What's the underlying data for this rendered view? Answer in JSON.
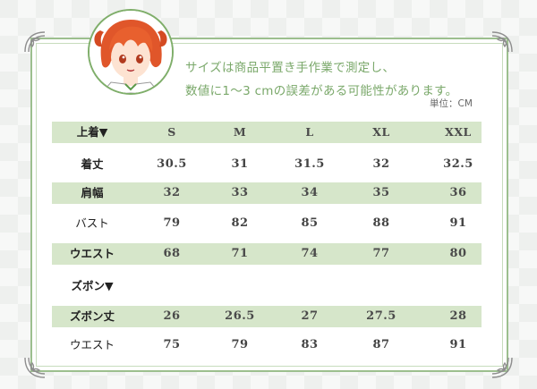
{
  "note": {
    "line1": "サイズは商品平置き手作業で測定し、",
    "line2": "数値に1～3 cmの誤差がある可能性があります。",
    "unit": "単位：CM"
  },
  "table": {
    "header": {
      "label": "上着▼",
      "sizes": [
        "S",
        "M",
        "L",
        "XL",
        "XXL"
      ]
    },
    "rows": [
      {
        "label": "着丈",
        "values": [
          "30.5",
          "31",
          "31.5",
          "32",
          "32.5"
        ]
      },
      {
        "label": "肩幅",
        "values": [
          "32",
          "33",
          "34",
          "35",
          "36"
        ]
      },
      {
        "label": "バスト",
        "values": [
          "79",
          "82",
          "85",
          "88",
          "91"
        ]
      },
      {
        "label": "ウエスト",
        "values": [
          "68",
          "71",
          "74",
          "77",
          "80"
        ]
      },
      {
        "label": "ズボン▼",
        "values": [
          "",
          "",
          "",
          "",
          ""
        ]
      },
      {
        "label": "ズボン丈",
        "values": [
          "26",
          "26.5",
          "27",
          "27.5",
          "28"
        ]
      },
      {
        "label": "ウエスト",
        "values": [
          "75",
          "79",
          "83",
          "87",
          "91"
        ]
      }
    ]
  },
  "colors": {
    "accent_green": "#7aa86a",
    "band_green": "#d6e6ca",
    "frame_green": "#9cbf8e"
  }
}
